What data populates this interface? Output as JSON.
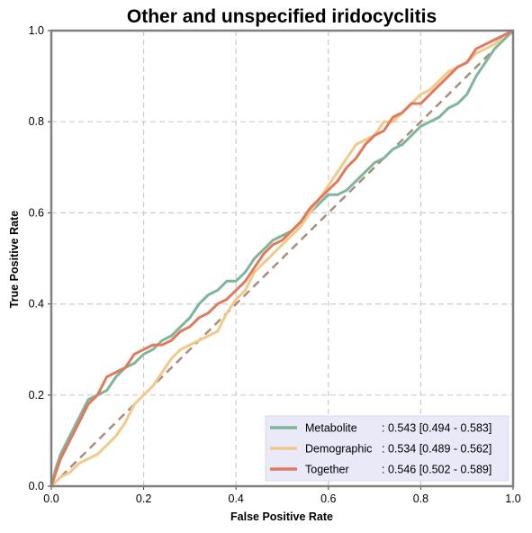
{
  "chart_data": {
    "type": "line",
    "title": "Other and unspecified iridocyclitis",
    "xlabel": "False Positive Rate",
    "ylabel": "True Positive Rate",
    "xlim": [
      0,
      1
    ],
    "ylim": [
      0,
      1
    ],
    "xticks": [
      "0.0",
      "0.2",
      "0.4",
      "0.6",
      "0.8",
      "1.0"
    ],
    "yticks": [
      "0.0",
      "0.2",
      "0.4",
      "0.6",
      "0.8",
      "1.0"
    ],
    "grid": true,
    "legend_position": "bottom-right",
    "series": [
      {
        "name": "Metabolite",
        "auc_text": ": 0.543 [0.494 - 0.583]",
        "color": "#7fb59a",
        "points": [
          [
            0,
            0
          ],
          [
            0.01,
            0.04
          ],
          [
            0.02,
            0.07
          ],
          [
            0.04,
            0.11
          ],
          [
            0.06,
            0.15
          ],
          [
            0.08,
            0.19
          ],
          [
            0.1,
            0.2
          ],
          [
            0.12,
            0.21
          ],
          [
            0.14,
            0.24
          ],
          [
            0.16,
            0.26
          ],
          [
            0.18,
            0.27
          ],
          [
            0.2,
            0.29
          ],
          [
            0.22,
            0.3
          ],
          [
            0.24,
            0.32
          ],
          [
            0.26,
            0.33
          ],
          [
            0.28,
            0.35
          ],
          [
            0.3,
            0.37
          ],
          [
            0.32,
            0.4
          ],
          [
            0.34,
            0.42
          ],
          [
            0.36,
            0.43
          ],
          [
            0.38,
            0.45
          ],
          [
            0.4,
            0.45
          ],
          [
            0.42,
            0.47
          ],
          [
            0.44,
            0.5
          ],
          [
            0.46,
            0.52
          ],
          [
            0.48,
            0.54
          ],
          [
            0.5,
            0.55
          ],
          [
            0.52,
            0.56
          ],
          [
            0.54,
            0.58
          ],
          [
            0.56,
            0.6
          ],
          [
            0.58,
            0.62
          ],
          [
            0.6,
            0.64
          ],
          [
            0.62,
            0.64
          ],
          [
            0.64,
            0.65
          ],
          [
            0.66,
            0.67
          ],
          [
            0.68,
            0.69
          ],
          [
            0.7,
            0.71
          ],
          [
            0.72,
            0.72
          ],
          [
            0.74,
            0.74
          ],
          [
            0.76,
            0.75
          ],
          [
            0.78,
            0.77
          ],
          [
            0.8,
            0.79
          ],
          [
            0.82,
            0.8
          ],
          [
            0.84,
            0.81
          ],
          [
            0.86,
            0.83
          ],
          [
            0.88,
            0.84
          ],
          [
            0.9,
            0.86
          ],
          [
            0.92,
            0.9
          ],
          [
            0.94,
            0.93
          ],
          [
            0.96,
            0.96
          ],
          [
            0.98,
            0.98
          ],
          [
            1,
            1
          ]
        ]
      },
      {
        "name": "Demographic",
        "auc_text": ": 0.534 [0.489 - 0.562]",
        "color": "#f2c98a",
        "points": [
          [
            0,
            0
          ],
          [
            0.02,
            0.02
          ],
          [
            0.04,
            0.03
          ],
          [
            0.06,
            0.05
          ],
          [
            0.08,
            0.06
          ],
          [
            0.1,
            0.07
          ],
          [
            0.12,
            0.09
          ],
          [
            0.14,
            0.11
          ],
          [
            0.16,
            0.14
          ],
          [
            0.18,
            0.18
          ],
          [
            0.2,
            0.2
          ],
          [
            0.22,
            0.22
          ],
          [
            0.24,
            0.25
          ],
          [
            0.26,
            0.28
          ],
          [
            0.28,
            0.3
          ],
          [
            0.3,
            0.31
          ],
          [
            0.32,
            0.32
          ],
          [
            0.34,
            0.33
          ],
          [
            0.36,
            0.34
          ],
          [
            0.38,
            0.38
          ],
          [
            0.4,
            0.41
          ],
          [
            0.42,
            0.43
          ],
          [
            0.44,
            0.47
          ],
          [
            0.46,
            0.49
          ],
          [
            0.48,
            0.51
          ],
          [
            0.5,
            0.53
          ],
          [
            0.52,
            0.55
          ],
          [
            0.54,
            0.57
          ],
          [
            0.56,
            0.6
          ],
          [
            0.58,
            0.63
          ],
          [
            0.6,
            0.66
          ],
          [
            0.62,
            0.69
          ],
          [
            0.64,
            0.72
          ],
          [
            0.66,
            0.75
          ],
          [
            0.68,
            0.76
          ],
          [
            0.7,
            0.77
          ],
          [
            0.72,
            0.8
          ],
          [
            0.74,
            0.8
          ],
          [
            0.76,
            0.82
          ],
          [
            0.78,
            0.84
          ],
          [
            0.8,
            0.86
          ],
          [
            0.82,
            0.87
          ],
          [
            0.84,
            0.89
          ],
          [
            0.86,
            0.91
          ],
          [
            0.88,
            0.92
          ],
          [
            0.9,
            0.93
          ],
          [
            0.92,
            0.95
          ],
          [
            0.94,
            0.96
          ],
          [
            0.96,
            0.97
          ],
          [
            0.98,
            0.99
          ],
          [
            1,
            1
          ]
        ]
      },
      {
        "name": "Together",
        "auc_text": ": 0.546 [0.502 - 0.589]",
        "color": "#e07a5f",
        "points": [
          [
            0,
            0
          ],
          [
            0.01,
            0.03
          ],
          [
            0.02,
            0.06
          ],
          [
            0.04,
            0.1
          ],
          [
            0.06,
            0.14
          ],
          [
            0.08,
            0.18
          ],
          [
            0.1,
            0.2
          ],
          [
            0.12,
            0.24
          ],
          [
            0.14,
            0.25
          ],
          [
            0.16,
            0.26
          ],
          [
            0.18,
            0.29
          ],
          [
            0.2,
            0.3
          ],
          [
            0.22,
            0.31
          ],
          [
            0.24,
            0.31
          ],
          [
            0.26,
            0.32
          ],
          [
            0.28,
            0.34
          ],
          [
            0.3,
            0.35
          ],
          [
            0.32,
            0.37
          ],
          [
            0.34,
            0.38
          ],
          [
            0.36,
            0.4
          ],
          [
            0.38,
            0.41
          ],
          [
            0.4,
            0.43
          ],
          [
            0.42,
            0.45
          ],
          [
            0.44,
            0.48
          ],
          [
            0.46,
            0.51
          ],
          [
            0.48,
            0.53
          ],
          [
            0.5,
            0.54
          ],
          [
            0.52,
            0.56
          ],
          [
            0.54,
            0.58
          ],
          [
            0.56,
            0.61
          ],
          [
            0.58,
            0.63
          ],
          [
            0.6,
            0.65
          ],
          [
            0.62,
            0.67
          ],
          [
            0.64,
            0.7
          ],
          [
            0.66,
            0.72
          ],
          [
            0.68,
            0.75
          ],
          [
            0.7,
            0.77
          ],
          [
            0.72,
            0.78
          ],
          [
            0.74,
            0.81
          ],
          [
            0.76,
            0.82
          ],
          [
            0.78,
            0.84
          ],
          [
            0.8,
            0.84
          ],
          [
            0.82,
            0.86
          ],
          [
            0.84,
            0.88
          ],
          [
            0.86,
            0.9
          ],
          [
            0.88,
            0.92
          ],
          [
            0.9,
            0.93
          ],
          [
            0.92,
            0.96
          ],
          [
            0.94,
            0.97
          ],
          [
            0.96,
            0.98
          ],
          [
            0.98,
            0.99
          ],
          [
            1,
            1
          ]
        ]
      }
    ],
    "reference_line": {
      "color": "#a88d80",
      "points": [
        [
          0,
          0
        ],
        [
          1,
          1
        ]
      ]
    }
  }
}
